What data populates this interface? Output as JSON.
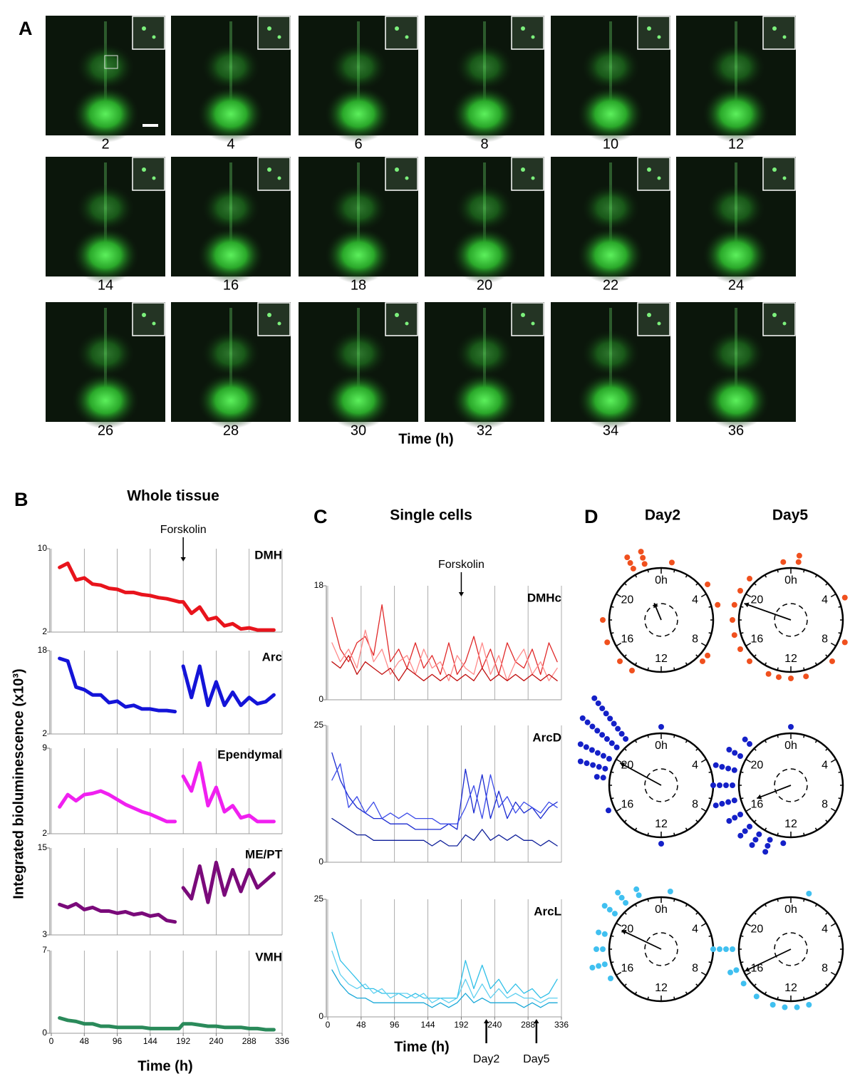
{
  "panel_a": {
    "label": "A",
    "frames": [
      2,
      4,
      6,
      8,
      10,
      12,
      14,
      16,
      18,
      20,
      22,
      24,
      26,
      28,
      30,
      32,
      34,
      36
    ],
    "xlabel": "Time (h)"
  },
  "panel_b": {
    "label": "B",
    "title": "Whole tissue",
    "ylabel": "Integrated bioluminescence (x10³)",
    "xlabel": "Time (h)",
    "xlim": [
      0,
      336
    ],
    "xticks": [
      0,
      48,
      96,
      144,
      192,
      240,
      288,
      336
    ],
    "annotation": {
      "text": "Forskolin",
      "x": 192
    },
    "x": [
      12,
      24,
      36,
      48,
      60,
      72,
      84,
      96,
      108,
      120,
      132,
      144,
      156,
      168,
      180,
      186,
      192,
      204,
      216,
      228,
      240,
      252,
      264,
      276,
      288,
      300,
      312,
      324
    ],
    "plots": [
      {
        "type": "line",
        "name": "DMH",
        "color": "#e8141c",
        "ylim": [
          2,
          10
        ],
        "yticks": [
          2,
          10
        ],
        "values": [
          8.2,
          8.6,
          7.0,
          7.2,
          6.6,
          6.5,
          6.2,
          6.1,
          5.8,
          5.8,
          5.6,
          5.5,
          5.3,
          5.2,
          5.0,
          4.9,
          4.9,
          3.8,
          4.4,
          3.2,
          3.4,
          2.6,
          2.8,
          2.3,
          2.4,
          2.2,
          2.2,
          2.2
        ]
      },
      {
        "type": "line",
        "name": "Arc",
        "color": "#1414d8",
        "ylim": [
          2,
          18
        ],
        "yticks": [
          2,
          18
        ],
        "values": [
          16.5,
          16,
          11,
          10.5,
          9.5,
          9.5,
          8,
          8.3,
          7.2,
          7.5,
          6.8,
          6.8,
          6.5,
          6.5,
          6.3,
          null,
          15,
          9,
          15,
          7.5,
          12,
          7.5,
          10,
          7.5,
          9,
          7.8,
          8.2,
          9.5
        ]
      },
      {
        "type": "line",
        "name": "Ependymal",
        "color": "#f020f0",
        "ylim": [
          2,
          9
        ],
        "yticks": [
          2,
          9
        ],
        "values": [
          4.2,
          5.2,
          4.7,
          5.2,
          5.3,
          5.5,
          5.2,
          4.8,
          4.4,
          4.1,
          3.8,
          3.6,
          3.3,
          3.0,
          3.0,
          null,
          6.7,
          5.5,
          7.8,
          4.3,
          5.8,
          3.8,
          4.3,
          3.3,
          3.5,
          3.0,
          3.0,
          3.0
        ]
      },
      {
        "type": "line",
        "name": "ME/PT",
        "color": "#7a0a7a",
        "ylim": [
          3,
          15
        ],
        "yticks": [
          3,
          15
        ],
        "values": [
          7.2,
          6.8,
          7.3,
          6.5,
          6.8,
          6.3,
          6.3,
          6.0,
          6.2,
          5.8,
          6.0,
          5.6,
          5.8,
          5.0,
          4.8,
          null,
          9.5,
          8.0,
          12.5,
          7.5,
          13,
          8.5,
          12,
          9,
          12,
          9.5,
          10.5,
          11.5
        ]
      },
      {
        "type": "line",
        "name": "VMH",
        "color": "#2a8a5a",
        "ylim": [
          0,
          7
        ],
        "yticks": [
          0,
          7
        ],
        "values": [
          1.3,
          1.1,
          1.0,
          0.8,
          0.8,
          0.6,
          0.6,
          0.5,
          0.5,
          0.5,
          0.5,
          0.4,
          0.4,
          0.4,
          0.4,
          0.4,
          0.8,
          0.8,
          0.7,
          0.6,
          0.6,
          0.5,
          0.5,
          0.5,
          0.4,
          0.4,
          0.3,
          0.3
        ]
      }
    ]
  },
  "panel_c": {
    "label": "C",
    "title": "Single cells",
    "xlabel": "Time (h)",
    "xlim": [
      0,
      336
    ],
    "xticks": [
      0,
      48,
      96,
      144,
      192,
      240,
      288,
      336
    ],
    "annotation": {
      "text": "Forskolin",
      "x": 192
    },
    "markers": [
      {
        "text": "Day2",
        "x": 228
      },
      {
        "text": "Day5",
        "x": 300
      }
    ],
    "x": [
      6,
      18,
      30,
      42,
      54,
      66,
      78,
      90,
      102,
      114,
      126,
      138,
      150,
      162,
      174,
      186,
      198,
      210,
      222,
      234,
      246,
      258,
      270,
      282,
      294,
      306,
      318,
      330
    ],
    "plots": [
      {
        "type": "line",
        "name": "DMHc",
        "ylim": [
          0,
          18
        ],
        "yticks": [
          0,
          18
        ],
        "series": [
          {
            "color": "#e02828",
            "values": [
              13,
              8,
              6,
              9,
              10,
              7,
              15,
              6,
              8,
              5,
              9,
              5,
              7,
              4,
              9,
              4,
              6,
              10,
              5,
              8,
              4,
              9,
              6,
              5,
              8,
              4,
              9,
              6
            ]
          },
          {
            "color": "#ff8a8a",
            "values": [
              9,
              6,
              8,
              5,
              11,
              6,
              8,
              4,
              6,
              7,
              4,
              8,
              5,
              6,
              3,
              7,
              5,
              4,
              9,
              4,
              7,
              3,
              6,
              8,
              4,
              6,
              3,
              5
            ]
          },
          {
            "color": "#c00e0e",
            "values": [
              6,
              5,
              7,
              4,
              6,
              5,
              4,
              5,
              3,
              5,
              4,
              3,
              4,
              3,
              4,
              3,
              4,
              3,
              5,
              3,
              4,
              3,
              4,
              3,
              4,
              3,
              4,
              3
            ]
          }
        ]
      },
      {
        "type": "line",
        "name": "ArcD",
        "ylim": [
          0,
          25
        ],
        "yticks": [
          0,
          25
        ],
        "series": [
          {
            "color": "#1a2ad0",
            "values": [
              20,
              15,
              12,
              10,
              9,
              8,
              8,
              7,
              7,
              7,
              6,
              6,
              6,
              6,
              7,
              6,
              17,
              9,
              16,
              8,
              13,
              8,
              11,
              9,
              10,
              8,
              10,
              11
            ]
          },
          {
            "color": "#3a4ae8",
            "values": [
              15,
              18,
              10,
              12,
              9,
              11,
              8,
              9,
              8,
              9,
              8,
              8,
              8,
              7,
              7,
              7,
              10,
              14,
              8,
              16,
              10,
              12,
              9,
              11,
              10,
              9,
              11,
              10
            ]
          },
          {
            "color": "#10209a",
            "values": [
              8,
              7,
              6,
              5,
              5,
              4,
              4,
              4,
              4,
              4,
              4,
              4,
              3,
              4,
              3,
              3,
              5,
              4,
              6,
              4,
              5,
              4,
              5,
              4,
              4,
              3,
              4,
              3
            ]
          }
        ]
      },
      {
        "type": "line",
        "name": "ArcL",
        "ylim": [
          0,
          25
        ],
        "yticks": [
          0,
          25
        ],
        "series": [
          {
            "color": "#30c0e8",
            "values": [
              18,
              12,
              10,
              8,
              6,
              6,
              5,
              5,
              5,
              4,
              5,
              4,
              4,
              4,
              4,
              4,
              12,
              6,
              11,
              6,
              8,
              5,
              7,
              5,
              6,
              4,
              5,
              8
            ]
          },
          {
            "color": "#60d0f0",
            "values": [
              14,
              9,
              7,
              6,
              7,
              5,
              6,
              4,
              5,
              5,
              4,
              5,
              3,
              4,
              3,
              4,
              8,
              4,
              7,
              4,
              6,
              4,
              5,
              4,
              4,
              3,
              4,
              4
            ]
          },
          {
            "color": "#18a8d8",
            "values": [
              10,
              7,
              5,
              4,
              4,
              3,
              3,
              3,
              3,
              3,
              3,
              3,
              2,
              3,
              2,
              3,
              5,
              3,
              4,
              3,
              3,
              3,
              3,
              2,
              3,
              2,
              3,
              3
            ]
          }
        ]
      }
    ]
  },
  "panel_d": {
    "label": "D",
    "type": "polar-dots",
    "columns": [
      "Day2",
      "Day5"
    ],
    "period": 24,
    "dial_ticks": [
      {
        "value": 0,
        "label": "0h"
      },
      4,
      8,
      12,
      16,
      20
    ],
    "rows": [
      {
        "color": "#f0501e",
        "dials": [
          {
            "phases": [
              22.9,
              22.1,
              0.7,
              3.5,
              5,
              8.5,
              9,
              18,
              16.5,
              15,
              14
            ],
            "counts": [
              3,
              3,
              1,
              1,
              1,
              1,
              1,
              1,
              1,
              1,
              1
            ],
            "mean_phase": 22.5,
            "mean_length": 0.35
          },
          {
            "phases": [
              23.5,
              0.5,
              4.5,
              7.5,
              9,
              11,
              12,
              12.8,
              13.5,
              15,
              16,
              17,
              18,
              19,
              20,
              21
            ],
            "counts": [
              1,
              2,
              1,
              1,
              1,
              1,
              1,
              1,
              1,
              1,
              1,
              1,
              1,
              1,
              1,
              1
            ],
            "mean_phase": 19.3,
            "mean_length": 0.95
          }
        ]
      },
      {
        "color": "#1420c8",
        "dials": [
          {
            "phases": [
              21.5,
              20.7,
              19.8,
              19.1,
              18.5,
              0,
              12,
              16.3
            ],
            "counts": [
              9,
              8,
              6,
              5,
              2,
              1,
              1,
              1
            ],
            "mean_phase": 19.9,
            "mean_length": 0.9
          },
          {
            "phases": [
              0,
              21,
              20,
              19,
              18,
              17,
              16,
              15,
              14.2,
              13.4,
              12.5
            ],
            "counts": [
              1,
              2,
              3,
              4,
              4,
              4,
              3,
              3,
              3,
              3,
              1
            ],
            "mean_phase": 16.6,
            "mean_length": 0.7
          }
        ]
      },
      {
        "color": "#40c0f0",
        "dials": [
          {
            "phases": [
              22.5,
              21.5,
              20.5,
              19,
              18,
              17,
              16,
              0.6
            ],
            "counts": [
              2,
              3,
              3,
              2,
              2,
              3,
              1,
              1
            ],
            "mean_phase": 19.7,
            "mean_length": 0.84
          },
          {
            "phases": [
              1.2,
              18,
              16.6,
              15.6,
              14.4,
              13.2,
              12.4,
              11.6,
              10.8
            ],
            "counts": [
              1,
              4,
              2,
              1,
              1,
              1,
              1,
              1,
              1
            ],
            "mean_phase": 16.3,
            "mean_length": 0.98
          }
        ]
      }
    ]
  }
}
